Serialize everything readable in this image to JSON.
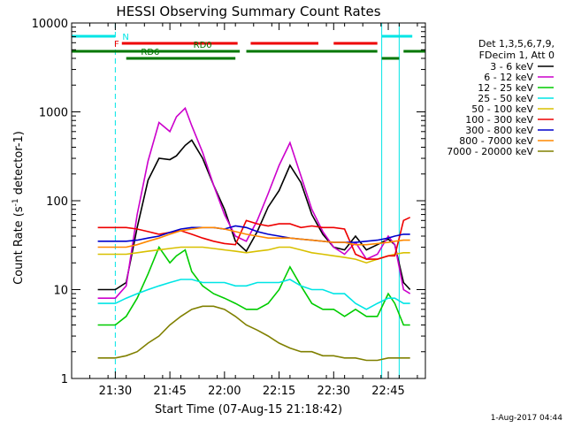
{
  "chart_data": {
    "type": "line",
    "title": "HESSI Observing Summary Count Rates",
    "xlabel": "Start Time (07-Aug-15 21:18:42)",
    "ylabel": "Count Rate (s⁻¹ detector⁻¹)",
    "y_scale": "log",
    "ylim": [
      1,
      10000
    ],
    "xlim_minutes": [
      21.3,
      22.92
    ],
    "x_ticks": [
      "21:30",
      "21:45",
      "22:00",
      "22:15",
      "22:30",
      "22:45"
    ],
    "y_ticks": [
      "1",
      "10",
      "100",
      "1000",
      "10000"
    ],
    "legend_header": [
      "Det 1,3,5,6,7,9,",
      "FDecim 1, Att 0"
    ],
    "legend_position": "right",
    "series": [
      {
        "name": "3 - 6 keV",
        "color": "#000000",
        "points": [
          [
            21.42,
            10
          ],
          [
            21.5,
            10
          ],
          [
            21.55,
            12
          ],
          [
            21.6,
            50
          ],
          [
            21.65,
            170
          ],
          [
            21.7,
            300
          ],
          [
            21.75,
            290
          ],
          [
            21.78,
            320
          ],
          [
            21.82,
            420
          ],
          [
            21.85,
            480
          ],
          [
            21.9,
            300
          ],
          [
            21.95,
            150
          ],
          [
            22.0,
            80
          ],
          [
            22.05,
            35
          ],
          [
            22.1,
            27
          ],
          [
            22.15,
            45
          ],
          [
            22.2,
            85
          ],
          [
            22.25,
            130
          ],
          [
            22.3,
            250
          ],
          [
            22.35,
            160
          ],
          [
            22.4,
            70
          ],
          [
            22.45,
            42
          ],
          [
            22.5,
            30
          ],
          [
            22.55,
            28
          ],
          [
            22.6,
            40
          ],
          [
            22.65,
            28
          ],
          [
            22.7,
            32
          ],
          [
            22.75,
            37
          ],
          [
            22.78,
            32
          ],
          [
            22.82,
            12
          ],
          [
            22.85,
            10
          ]
        ]
      },
      {
        "name": "6 - 12 keV",
        "color": "#cc00cc",
        "points": [
          [
            21.42,
            8
          ],
          [
            21.5,
            8
          ],
          [
            21.55,
            11
          ],
          [
            21.6,
            70
          ],
          [
            21.65,
            280
          ],
          [
            21.7,
            760
          ],
          [
            21.75,
            600
          ],
          [
            21.78,
            880
          ],
          [
            21.82,
            1100
          ],
          [
            21.85,
            700
          ],
          [
            21.9,
            350
          ],
          [
            21.95,
            150
          ],
          [
            22.0,
            70
          ],
          [
            22.05,
            40
          ],
          [
            22.1,
            35
          ],
          [
            22.15,
            60
          ],
          [
            22.2,
            120
          ],
          [
            22.25,
            250
          ],
          [
            22.3,
            450
          ],
          [
            22.35,
            190
          ],
          [
            22.4,
            80
          ],
          [
            22.45,
            45
          ],
          [
            22.5,
            30
          ],
          [
            22.55,
            25
          ],
          [
            22.6,
            34
          ],
          [
            22.65,
            22
          ],
          [
            22.7,
            25
          ],
          [
            22.75,
            40
          ],
          [
            22.78,
            32
          ],
          [
            22.82,
            10
          ],
          [
            22.85,
            9
          ]
        ]
      },
      {
        "name": "12 - 25 keV",
        "color": "#00cc00",
        "points": [
          [
            21.42,
            4
          ],
          [
            21.5,
            4
          ],
          [
            21.55,
            5
          ],
          [
            21.6,
            8
          ],
          [
            21.65,
            15
          ],
          [
            21.7,
            30
          ],
          [
            21.75,
            20
          ],
          [
            21.78,
            24
          ],
          [
            21.82,
            28
          ],
          [
            21.85,
            16
          ],
          [
            21.9,
            11
          ],
          [
            21.95,
            9
          ],
          [
            22.0,
            8
          ],
          [
            22.05,
            7
          ],
          [
            22.1,
            6
          ],
          [
            22.15,
            6
          ],
          [
            22.2,
            7
          ],
          [
            22.25,
            10
          ],
          [
            22.3,
            18
          ],
          [
            22.35,
            11
          ],
          [
            22.4,
            7
          ],
          [
            22.45,
            6
          ],
          [
            22.5,
            6
          ],
          [
            22.55,
            5
          ],
          [
            22.6,
            6
          ],
          [
            22.65,
            5
          ],
          [
            22.7,
            5
          ],
          [
            22.75,
            9
          ],
          [
            22.78,
            7
          ],
          [
            22.82,
            4
          ],
          [
            22.85,
            4
          ]
        ]
      },
      {
        "name": "25 - 50 keV",
        "color": "#00e5e5",
        "points": [
          [
            21.42,
            7
          ],
          [
            21.5,
            7
          ],
          [
            21.55,
            8
          ],
          [
            21.6,
            9
          ],
          [
            21.65,
            10
          ],
          [
            21.7,
            11
          ],
          [
            21.75,
            12
          ],
          [
            21.8,
            13
          ],
          [
            21.85,
            13
          ],
          [
            21.9,
            12
          ],
          [
            21.95,
            12
          ],
          [
            22.0,
            12
          ],
          [
            22.05,
            11
          ],
          [
            22.1,
            11
          ],
          [
            22.15,
            12
          ],
          [
            22.2,
            12
          ],
          [
            22.25,
            12
          ],
          [
            22.3,
            13
          ],
          [
            22.35,
            11
          ],
          [
            22.4,
            10
          ],
          [
            22.45,
            10
          ],
          [
            22.5,
            9
          ],
          [
            22.55,
            9
          ],
          [
            22.6,
            7
          ],
          [
            22.65,
            6
          ],
          [
            22.7,
            7
          ],
          [
            22.75,
            8
          ],
          [
            22.78,
            8
          ],
          [
            22.82,
            7
          ],
          [
            22.85,
            7
          ]
        ]
      },
      {
        "name": "50 - 100 keV",
        "color": "#d8c000",
        "points": [
          [
            21.42,
            25
          ],
          [
            21.5,
            25
          ],
          [
            21.55,
            25
          ],
          [
            21.6,
            26
          ],
          [
            21.65,
            27
          ],
          [
            21.7,
            28
          ],
          [
            21.75,
            29
          ],
          [
            21.8,
            30
          ],
          [
            21.85,
            30
          ],
          [
            21.9,
            30
          ],
          [
            21.95,
            29
          ],
          [
            22.0,
            28
          ],
          [
            22.05,
            27
          ],
          [
            22.1,
            26
          ],
          [
            22.15,
            27
          ],
          [
            22.2,
            28
          ],
          [
            22.25,
            30
          ],
          [
            22.3,
            30
          ],
          [
            22.35,
            28
          ],
          [
            22.4,
            26
          ],
          [
            22.45,
            25
          ],
          [
            22.5,
            24
          ],
          [
            22.55,
            23
          ],
          [
            22.6,
            22
          ],
          [
            22.65,
            20
          ],
          [
            22.7,
            22
          ],
          [
            22.75,
            24
          ],
          [
            22.78,
            25
          ],
          [
            22.82,
            26
          ],
          [
            22.85,
            26
          ]
        ]
      },
      {
        "name": "100 - 300 keV",
        "color": "#ee0000",
        "points": [
          [
            21.42,
            50
          ],
          [
            21.5,
            50
          ],
          [
            21.55,
            50
          ],
          [
            21.6,
            48
          ],
          [
            21.65,
            45
          ],
          [
            21.7,
            42
          ],
          [
            21.75,
            44
          ],
          [
            21.8,
            46
          ],
          [
            21.85,
            42
          ],
          [
            21.9,
            38
          ],
          [
            21.95,
            35
          ],
          [
            22.0,
            33
          ],
          [
            22.05,
            32
          ],
          [
            22.1,
            60
          ],
          [
            22.15,
            55
          ],
          [
            22.2,
            52
          ],
          [
            22.25,
            55
          ],
          [
            22.3,
            55
          ],
          [
            22.35,
            50
          ],
          [
            22.4,
            52
          ],
          [
            22.45,
            50
          ],
          [
            22.5,
            50
          ],
          [
            22.55,
            48
          ],
          [
            22.6,
            25
          ],
          [
            22.65,
            22
          ],
          [
            22.7,
            22
          ],
          [
            22.75,
            24
          ],
          [
            22.78,
            24
          ],
          [
            22.82,
            60
          ],
          [
            22.85,
            65
          ]
        ]
      },
      {
        "name": "300 - 800 keV",
        "color": "#0000cc",
        "points": [
          [
            21.42,
            35
          ],
          [
            21.5,
            35
          ],
          [
            21.55,
            35
          ],
          [
            21.6,
            36
          ],
          [
            21.65,
            38
          ],
          [
            21.7,
            40
          ],
          [
            21.75,
            44
          ],
          [
            21.8,
            48
          ],
          [
            21.85,
            50
          ],
          [
            21.9,
            50
          ],
          [
            21.95,
            50
          ],
          [
            22.0,
            48
          ],
          [
            22.05,
            52
          ],
          [
            22.1,
            50
          ],
          [
            22.15,
            45
          ],
          [
            22.2,
            42
          ],
          [
            22.25,
            40
          ],
          [
            22.3,
            38
          ],
          [
            22.35,
            37
          ],
          [
            22.4,
            36
          ],
          [
            22.45,
            35
          ],
          [
            22.5,
            34
          ],
          [
            22.55,
            34
          ],
          [
            22.6,
            34
          ],
          [
            22.65,
            35
          ],
          [
            22.7,
            36
          ],
          [
            22.75,
            38
          ],
          [
            22.78,
            40
          ],
          [
            22.82,
            42
          ],
          [
            22.85,
            42
          ]
        ]
      },
      {
        "name": "800 - 7000 keV",
        "color": "#ff8800",
        "points": [
          [
            21.42,
            30
          ],
          [
            21.5,
            30
          ],
          [
            21.55,
            30
          ],
          [
            21.6,
            32
          ],
          [
            21.65,
            35
          ],
          [
            21.7,
            38
          ],
          [
            21.75,
            42
          ],
          [
            21.8,
            46
          ],
          [
            21.85,
            48
          ],
          [
            21.9,
            50
          ],
          [
            21.95,
            50
          ],
          [
            22.0,
            48
          ],
          [
            22.05,
            45
          ],
          [
            22.1,
            42
          ],
          [
            22.15,
            40
          ],
          [
            22.2,
            38
          ],
          [
            22.25,
            38
          ],
          [
            22.3,
            38
          ],
          [
            22.35,
            37
          ],
          [
            22.4,
            36
          ],
          [
            22.45,
            35
          ],
          [
            22.5,
            34
          ],
          [
            22.55,
            34
          ],
          [
            22.6,
            32
          ],
          [
            22.65,
            32
          ],
          [
            22.7,
            33
          ],
          [
            22.75,
            34
          ],
          [
            22.78,
            35
          ],
          [
            22.82,
            36
          ],
          [
            22.85,
            36
          ]
        ]
      },
      {
        "name": "7000 - 20000 keV",
        "color": "#808000",
        "points": [
          [
            21.42,
            1.7
          ],
          [
            21.5,
            1.7
          ],
          [
            21.55,
            1.8
          ],
          [
            21.6,
            2
          ],
          [
            21.65,
            2.5
          ],
          [
            21.7,
            3
          ],
          [
            21.75,
            4
          ],
          [
            21.8,
            5
          ],
          [
            21.85,
            6
          ],
          [
            21.9,
            6.5
          ],
          [
            21.95,
            6.5
          ],
          [
            22.0,
            6
          ],
          [
            22.05,
            5
          ],
          [
            22.1,
            4
          ],
          [
            22.15,
            3.5
          ],
          [
            22.2,
            3
          ],
          [
            22.25,
            2.5
          ],
          [
            22.3,
            2.2
          ],
          [
            22.35,
            2
          ],
          [
            22.4,
            2
          ],
          [
            22.45,
            1.8
          ],
          [
            22.5,
            1.8
          ],
          [
            22.55,
            1.7
          ],
          [
            22.6,
            1.7
          ],
          [
            22.65,
            1.6
          ],
          [
            22.7,
            1.6
          ],
          [
            22.75,
            1.7
          ],
          [
            22.78,
            1.7
          ],
          [
            22.82,
            1.7
          ],
          [
            22.85,
            1.7
          ]
        ]
      }
    ],
    "flag_bars": [
      {
        "label": "N",
        "color": "#00e5e5",
        "level": 0,
        "segments": [
          [
            21.3,
            21.5
          ],
          [
            22.72,
            22.86
          ]
        ]
      },
      {
        "label": "F",
        "color": "#ee0000",
        "level": 1,
        "segments": [
          [
            21.53,
            22.06
          ],
          [
            22.12,
            22.43
          ],
          [
            22.5,
            22.7
          ]
        ]
      },
      {
        "label": "RD0",
        "color": "#007700",
        "level": 2,
        "segments": [
          [
            21.3,
            22.07
          ],
          [
            22.1,
            22.7
          ],
          [
            22.82,
            22.92
          ]
        ]
      },
      {
        "label": "RD6",
        "color": "#007700",
        "level": 3,
        "segments": [
          [
            21.55,
            22.05
          ],
          [
            22.72,
            22.8
          ]
        ]
      }
    ],
    "vertical_lines": [
      {
        "x": 21.3,
        "color": "#00e5e5",
        "style": "solid"
      },
      {
        "x": 21.5,
        "color": "#00e5e5",
        "style": "dashed"
      },
      {
        "x": 22.72,
        "color": "#00e5e5",
        "style": "solid"
      },
      {
        "x": 22.8,
        "color": "#00e5e5",
        "style": "solid"
      },
      {
        "x": 22.92,
        "color": "#00e5e5",
        "style": "dashed"
      }
    ]
  },
  "footer": {
    "timestamp": "1-Aug-2017 04:44"
  }
}
